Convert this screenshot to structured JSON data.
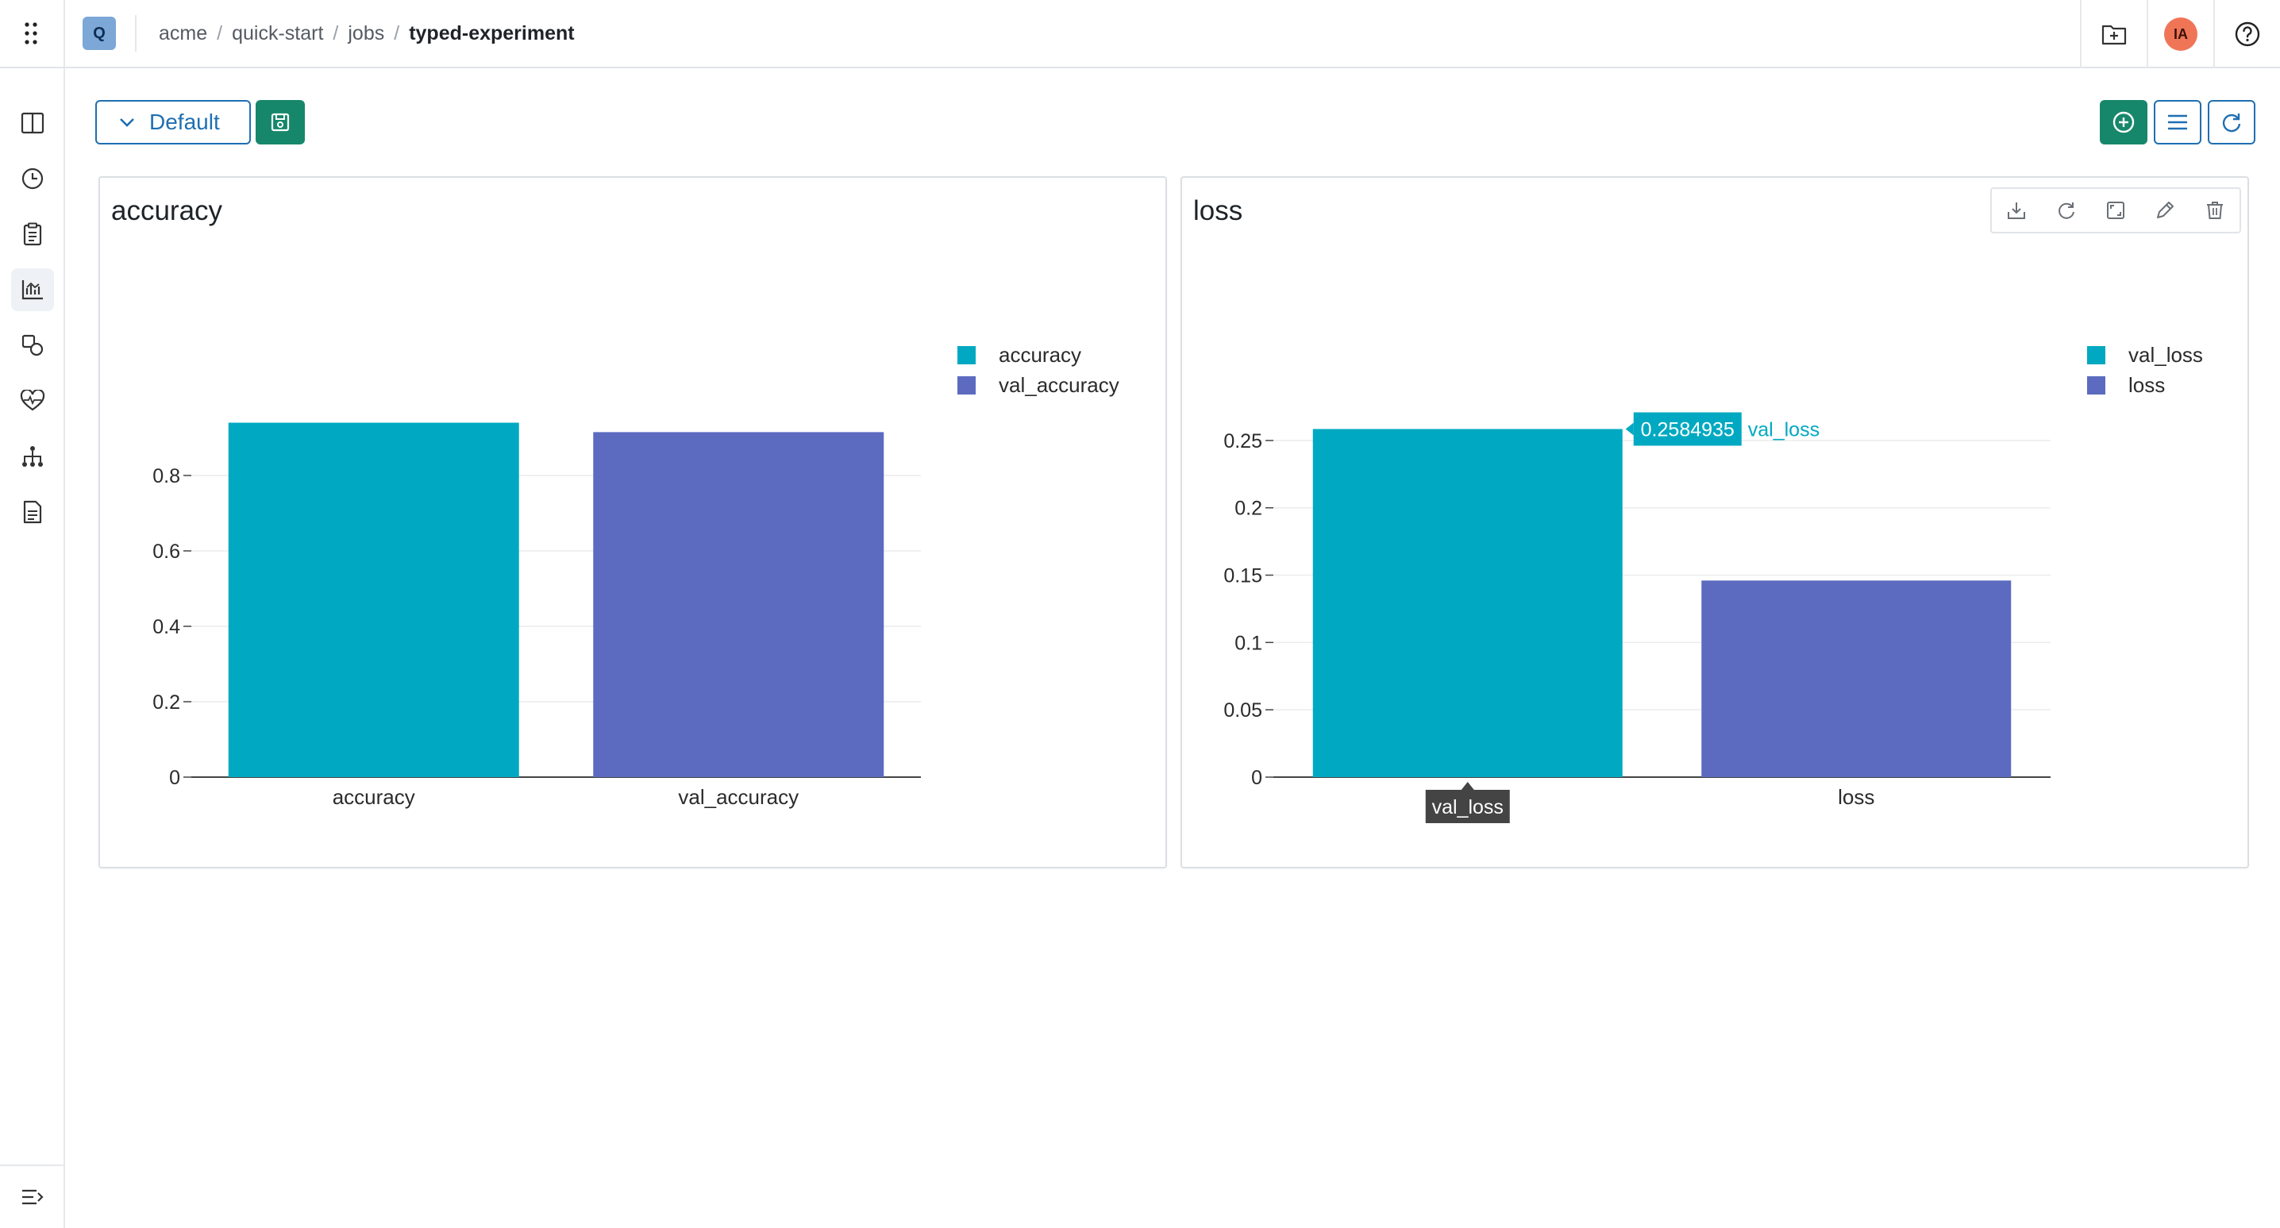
{
  "header": {
    "project_initial": "Q",
    "breadcrumb": [
      "acme",
      "quick-start",
      "jobs",
      "typed-experiment"
    ],
    "avatar_initials": "IA"
  },
  "toolbar": {
    "view_label": "Default"
  },
  "icons": {
    "apps": "apps-grid-icon",
    "nav": [
      "book-icon",
      "clock-icon",
      "clipboard-icon",
      "chart-icon",
      "shapes-icon",
      "heartbeat-icon",
      "hierarchy-icon",
      "document-icon"
    ],
    "collapse": "collapse-menu-icon",
    "header_right": [
      "folder-add-icon",
      "help-icon"
    ],
    "toolbar": [
      "save-icon",
      "add-circle-icon",
      "list-icon",
      "refresh-icon"
    ],
    "panel_tools": [
      "download-icon",
      "refresh-icon",
      "expand-icon",
      "edit-icon",
      "trash-icon"
    ]
  },
  "colors": {
    "teal": "#00a9c1",
    "indigo": "#5c6bc0",
    "primary_blue": "#1f6fb2",
    "green": "#17876b",
    "avatar": "#f07556"
  },
  "chart_data": [
    {
      "type": "bar",
      "title": "accuracy",
      "categories": [
        "accuracy",
        "val_accuracy"
      ],
      "values": [
        0.94,
        0.915
      ],
      "colors": [
        "#00a9c1",
        "#5c6bc0"
      ],
      "legend": [
        "accuracy",
        "val_accuracy"
      ],
      "legend_position": "top-right",
      "ylim": [
        0,
        1
      ],
      "yticks": [
        0,
        0.2,
        0.4,
        0.6,
        0.8
      ],
      "ytick_labels": [
        "0",
        "0.2",
        "0.4",
        "0.6",
        "0.8"
      ],
      "grid": true
    },
    {
      "type": "bar",
      "title": "loss",
      "categories": [
        "val_loss",
        "loss"
      ],
      "values": [
        0.2584935,
        0.146
      ],
      "colors": [
        "#00a9c1",
        "#5c6bc0"
      ],
      "legend": [
        "val_loss",
        "loss"
      ],
      "legend_position": "top-right",
      "ylim": [
        0,
        0.28
      ],
      "yticks": [
        0,
        0.05,
        0.1,
        0.15,
        0.2,
        0.25
      ],
      "ytick_labels": [
        "0",
        "0.05",
        "0.1",
        "0.15",
        "0.2",
        "0.25"
      ],
      "grid": true,
      "hover": {
        "value_label": "0.2584935",
        "series_label": "val_loss",
        "axis_label": "val_loss"
      }
    }
  ]
}
